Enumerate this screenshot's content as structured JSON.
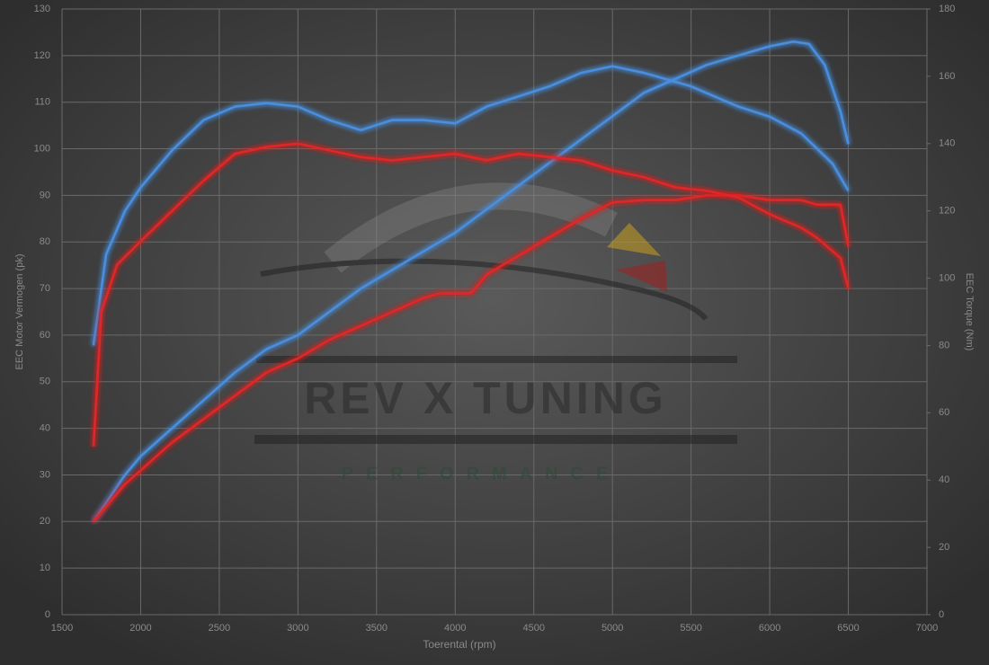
{
  "chart_data": {
    "type": "line",
    "watermark": "REV X TUNING",
    "watermark_sub": "PERFORMANCE",
    "xlabel": "Toerental (rpm)",
    "ylabel": "EEC Motor Vermogen (pk)",
    "y2label": "EEC Torque (Nm)",
    "xlim": [
      1500,
      7000
    ],
    "xticks": [
      1500,
      2000,
      2500,
      3000,
      3500,
      4000,
      4500,
      5000,
      5500,
      6000,
      6500,
      7000
    ],
    "ylim": [
      0,
      130
    ],
    "yticks": [
      0,
      10,
      20,
      30,
      40,
      50,
      60,
      70,
      80,
      90,
      100,
      110,
      120,
      130
    ],
    "y2lim": [
      0,
      180
    ],
    "y2ticks": [
      0,
      20,
      40,
      60,
      80,
      100,
      120,
      140,
      160,
      180
    ],
    "grid": true,
    "series": [
      {
        "color": "#4a8fe0",
        "axis": "y",
        "x": [
          1700,
          1800,
          1900,
          2000,
          2200,
          2400,
          2600,
          2800,
          3000,
          3200,
          3400,
          3600,
          3800,
          4000,
          4200,
          4400,
          4600,
          4800,
          5000,
          5200,
          5400,
          5600,
          5800,
          6000,
          6150,
          6250,
          6350,
          6450,
          6500
        ],
        "values": [
          20,
          25,
          30,
          34,
          40,
          46,
          52,
          57,
          60,
          65,
          70,
          74,
          78,
          82,
          87,
          92,
          97,
          102,
          107,
          112,
          115,
          118,
          120,
          122,
          123,
          122.5,
          118,
          108,
          101
        ]
      },
      {
        "color": "#e02828",
        "axis": "y",
        "x": [
          1700,
          1800,
          1900,
          2000,
          2200,
          2400,
          2600,
          2800,
          3000,
          3200,
          3400,
          3600,
          3800,
          3900,
          4100,
          4200,
          4400,
          4600,
          4800,
          5000,
          5200,
          5400,
          5600,
          5800,
          6000,
          6200,
          6300,
          6450,
          6500
        ],
        "values": [
          20,
          24,
          28,
          31,
          37,
          42,
          47,
          52,
          55,
          59,
          62,
          65,
          68,
          69,
          69,
          73,
          77,
          81,
          85,
          88.5,
          89,
          89,
          90,
          90,
          89,
          89,
          88,
          88,
          79
        ]
      },
      {
        "color": "#4a8fe0",
        "axis": "y2",
        "x": [
          1700,
          1780,
          1900,
          2000,
          2200,
          2400,
          2600,
          2800,
          3000,
          3200,
          3400,
          3600,
          3800,
          4000,
          4200,
          4400,
          4600,
          4800,
          5000,
          5200,
          5500,
          5800,
          6000,
          6200,
          6400,
          6500
        ],
        "values": [
          80,
          107,
          120,
          127,
          138,
          147,
          151,
          152,
          151,
          147,
          144,
          147,
          147,
          146,
          151,
          154,
          157,
          161,
          163,
          161,
          157,
          151,
          148,
          143,
          134,
          126
        ]
      },
      {
        "color": "#e02828",
        "axis": "y2",
        "x": [
          1700,
          1750,
          1850,
          2000,
          2200,
          2400,
          2600,
          2800,
          3000,
          3200,
          3400,
          3600,
          3800,
          4000,
          4200,
          4400,
          4600,
          4800,
          5000,
          5200,
          5400,
          5600,
          5800,
          6000,
          6200,
          6300,
          6400,
          6450,
          6500
        ],
        "values": [
          50,
          90,
          104,
          111,
          120,
          129,
          137,
          139,
          140,
          138,
          136,
          135,
          136,
          137,
          135,
          137,
          136,
          135,
          132,
          130,
          127,
          126,
          124,
          119,
          115,
          112,
          108,
          106,
          97
        ]
      }
    ]
  }
}
